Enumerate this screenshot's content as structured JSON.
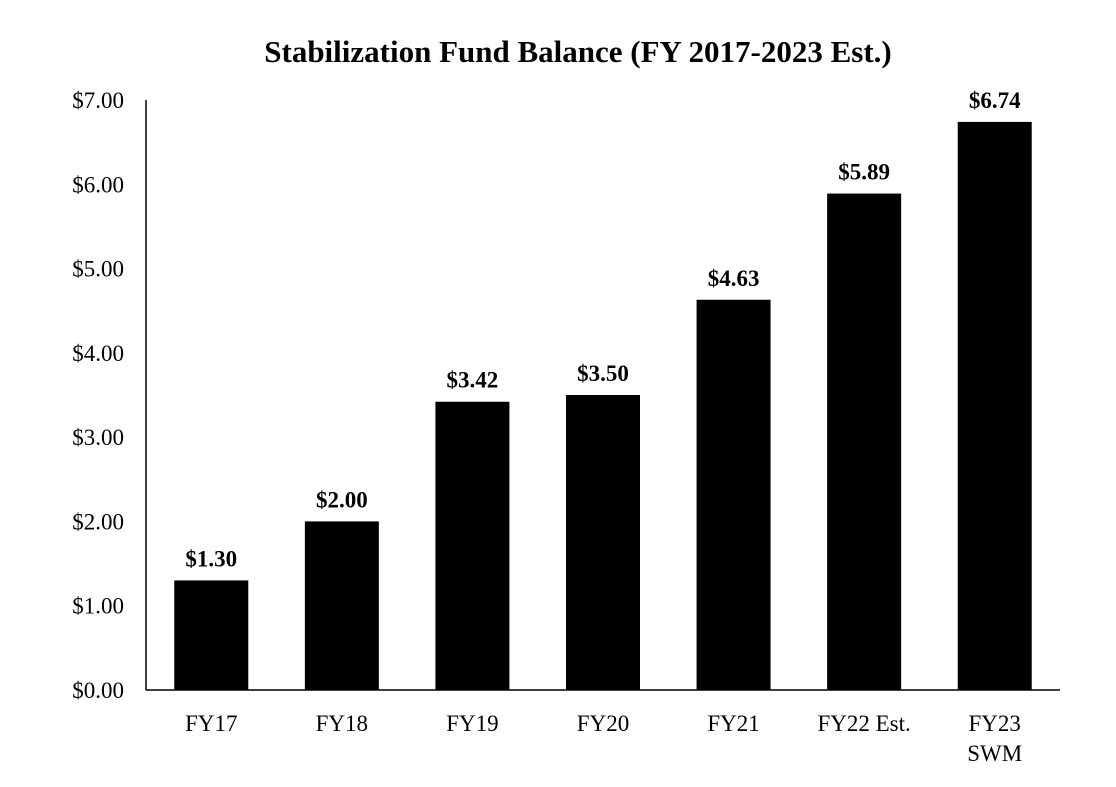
{
  "chart_data": {
    "type": "bar",
    "title": "Stabilization Fund Balance (FY 2017-2023 Est.)",
    "xlabel": "",
    "ylabel": "",
    "categories": [
      [
        "FY17"
      ],
      [
        "FY18"
      ],
      [
        "FY19"
      ],
      [
        "FY20"
      ],
      [
        "FY21"
      ],
      [
        "FY22 Est."
      ],
      [
        "FY23",
        "SWM"
      ]
    ],
    "values": [
      1.3,
      2.0,
      3.42,
      3.5,
      4.63,
      5.89,
      6.74
    ],
    "value_labels": [
      "$1.30",
      "$2.00",
      "$3.42",
      "$3.50",
      "$4.63",
      "$5.89",
      "$6.74"
    ],
    "ylim": [
      0,
      7
    ],
    "yticks": [
      0,
      1,
      2,
      3,
      4,
      5,
      6,
      7
    ],
    "ytick_labels": [
      "$0.00",
      "$1.00",
      "$2.00",
      "$3.00",
      "$4.00",
      "$5.00",
      "$6.00",
      "$7.00"
    ],
    "grid": false,
    "legend": "none",
    "bar_color": "#000000"
  }
}
